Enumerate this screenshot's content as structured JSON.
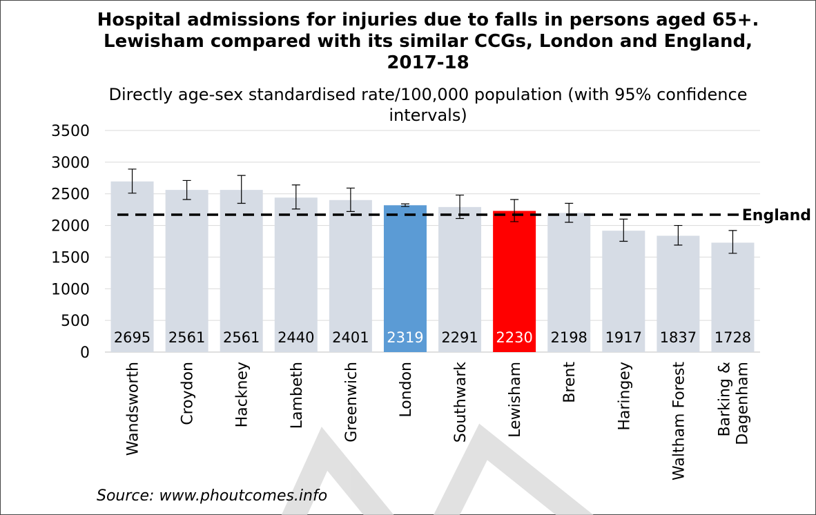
{
  "chart_data": {
    "type": "bar",
    "title": "Hospital admissions for injuries due to falls in persons aged 65+. Lewisham compared with its similar CCGs, London and England, 2017-18",
    "subtitle": "Directly age-sex standardised rate/100,000 population (with 95% confidence intervals)",
    "source": "Source: www.phoutcomes.info",
    "categories": [
      "Wandsworth",
      "Croydon",
      "Hackney",
      "Lambeth",
      "Greenwich",
      "London",
      "Southwark",
      "Lewisham",
      "Brent",
      "Haringey",
      "Waltham Forest",
      "Barking & Dagenham"
    ],
    "values": [
      2695,
      2561,
      2561,
      2440,
      2401,
      2319,
      2291,
      2230,
      2198,
      1917,
      1837,
      1728
    ],
    "ci_lower": [
      2510,
      2410,
      2350,
      2260,
      2220,
      2300,
      2110,
      2060,
      2050,
      1750,
      1690,
      1560
    ],
    "ci_upper": [
      2890,
      2710,
      2790,
      2640,
      2590,
      2340,
      2480,
      2410,
      2350,
      2100,
      2000,
      1920
    ],
    "color": "#d6dce5",
    "colors": [
      "#d6dce5",
      "#d6dce5",
      "#d6dce5",
      "#d6dce5",
      "#d6dce5",
      "#5b9bd5",
      "#d6dce5",
      "#ff0000",
      "#d6dce5",
      "#d6dce5",
      "#d6dce5",
      "#d6dce5"
    ],
    "reference_line": {
      "label": "England",
      "value": 2170
    },
    "ylim": [
      0,
      3500
    ],
    "yticks": [
      0,
      500,
      1000,
      1500,
      2000,
      2500,
      3000,
      3500
    ],
    "grid": true
  }
}
